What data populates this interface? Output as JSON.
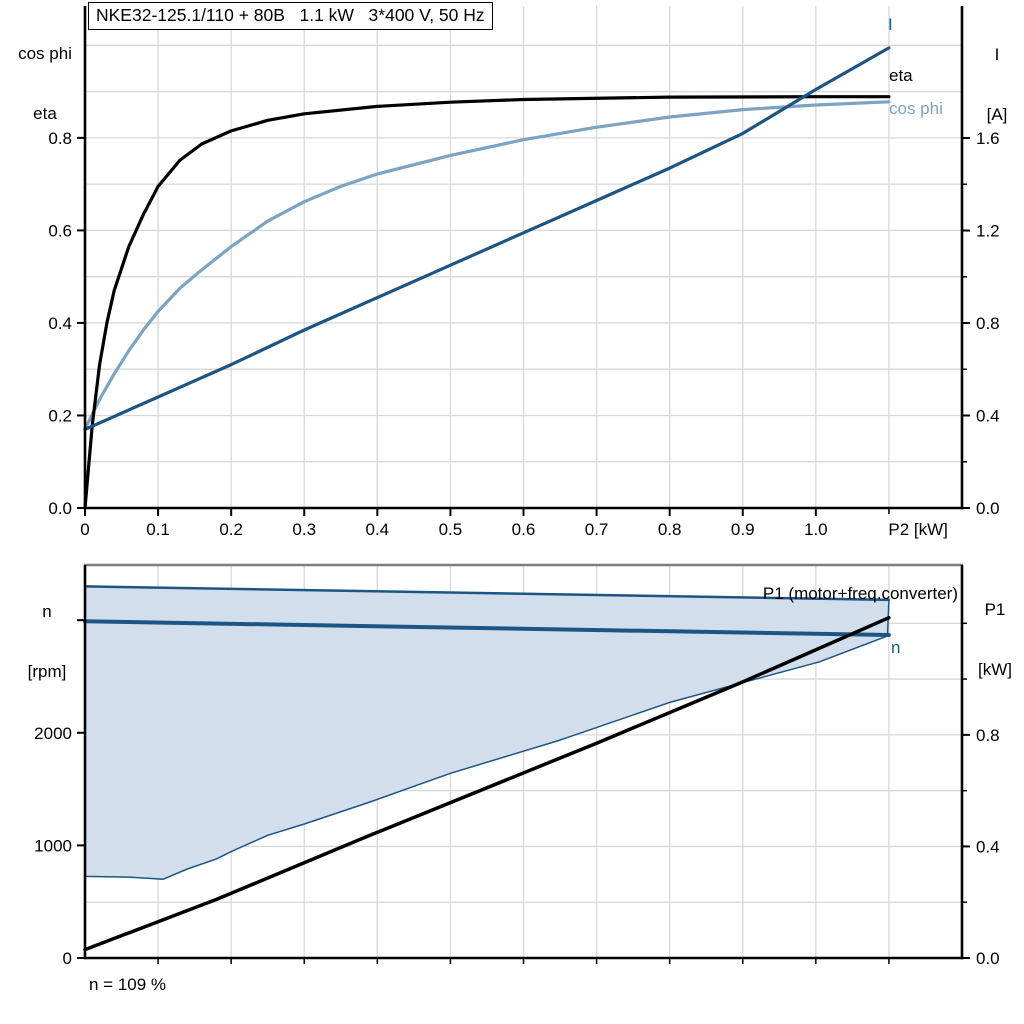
{
  "title": "NKE32-125.1/110 + 80B   1.1 kW   3*400 V, 50 Hz",
  "note": "n = 109 %",
  "colors": {
    "black": "#000000",
    "dark_blue": "#1c5583",
    "light_blue": "#7ba3c4",
    "fill_blue": "#d3deec",
    "grid": "#d8d8d8",
    "frame_gray": "#7f7f7f"
  },
  "axis_titles": {
    "top_left": [
      "cos phi",
      "eta"
    ],
    "top_right": [
      "I",
      "[A]"
    ],
    "bottom_left": [
      "n",
      "[rpm]"
    ],
    "bottom_right": [
      "P1",
      "[kW]"
    ]
  },
  "curve_labels": {
    "i": "I",
    "eta": "eta",
    "cos_phi": "cos phi",
    "p1": "P1 (motor+freq.converter)",
    "n": "n"
  },
  "chart_data": [
    {
      "type": "line",
      "title": "NKE32-125.1/110 + 80B   1.1 kW   3*400 V, 50 Hz",
      "grid": true,
      "x_axis": {
        "title": "P2 [kW]",
        "title_pos": 1.14,
        "range": [
          0,
          1.2
        ],
        "ticks": [
          {
            "v": 0,
            "label": "0"
          },
          {
            "v": 0.1,
            "label": "0.1"
          },
          {
            "v": 0.2,
            "label": "0.2"
          },
          {
            "v": 0.3,
            "label": "0.3"
          },
          {
            "v": 0.4,
            "label": "0.4"
          },
          {
            "v": 0.5,
            "label": "0.5"
          },
          {
            "v": 0.6,
            "label": "0.6"
          },
          {
            "v": 0.7,
            "label": "0.7"
          },
          {
            "v": 0.8,
            "label": "0.8"
          },
          {
            "v": 0.9,
            "label": "0.9"
          },
          {
            "v": 1.0,
            "label": "1.0"
          }
        ],
        "minor": [
          1.1
        ],
        "gridlines": [
          0.1,
          0.2,
          0.3,
          0.4,
          0.5,
          0.6,
          0.7,
          0.8,
          0.9,
          1.0,
          1.1
        ]
      },
      "left_axis": {
        "title": "cos phi / eta",
        "range": [
          0,
          1.085
        ],
        "ticks": [
          {
            "v": 0.0,
            "label": "0.0"
          },
          {
            "v": 0.2,
            "label": "0.2"
          },
          {
            "v": 0.4,
            "label": "0.4"
          },
          {
            "v": 0.6,
            "label": "0.6"
          },
          {
            "v": 0.8,
            "label": "0.8"
          }
        ],
        "minor": [],
        "gridlines": [
          0.1,
          0.2,
          0.3,
          0.4,
          0.5,
          0.6,
          0.7,
          0.8,
          0.9,
          1.0
        ]
      },
      "right_axis": {
        "title": "I [A]",
        "range": [
          0,
          2.171
        ],
        "ticks": [
          {
            "v": 0.0,
            "label": "0.0"
          },
          {
            "v": 0.4,
            "label": "0.4"
          },
          {
            "v": 0.8,
            "label": "0.8"
          },
          {
            "v": 1.2,
            "label": "1.2"
          },
          {
            "v": 1.6,
            "label": "1.6"
          }
        ],
        "minor": [
          0.2,
          0.6,
          1.0,
          1.4
        ],
        "gridlines": []
      },
      "series": [
        {
          "name": "cos phi",
          "axis": "left",
          "color": "light_blue",
          "width": 3.2,
          "draw": true,
          "x": [
            0,
            0.02,
            0.04,
            0.06,
            0.08,
            0.1,
            0.13,
            0.16,
            0.2,
            0.25,
            0.3,
            0.35,
            0.4,
            0.5,
            0.6,
            0.7,
            0.8,
            0.9,
            1.0,
            1.1
          ],
          "y": [
            0.17,
            0.235,
            0.29,
            0.34,
            0.385,
            0.425,
            0.475,
            0.515,
            0.565,
            0.62,
            0.662,
            0.695,
            0.722,
            0.762,
            0.796,
            0.823,
            0.845,
            0.861,
            0.871,
            0.878
          ]
        },
        {
          "name": "eta",
          "axis": "left",
          "color": "black",
          "width": 3.2,
          "draw": true,
          "x": [
            0,
            0.01,
            0.02,
            0.03,
            0.04,
            0.06,
            0.08,
            0.1,
            0.13,
            0.16,
            0.2,
            0.25,
            0.3,
            0.4,
            0.5,
            0.6,
            0.8,
            1.0,
            1.1
          ],
          "y": [
            0,
            0.18,
            0.31,
            0.4,
            0.47,
            0.565,
            0.635,
            0.695,
            0.752,
            0.787,
            0.815,
            0.838,
            0.852,
            0.868,
            0.877,
            0.883,
            0.888,
            0.889,
            0.889
          ]
        },
        {
          "name": "I",
          "axis": "right",
          "color": "dark_blue",
          "width": 3.2,
          "draw": true,
          "x": [
            0,
            0.1,
            0.2,
            0.3,
            0.4,
            0.5,
            0.6,
            0.7,
            0.8,
            0.9,
            1.0,
            1.1
          ],
          "y": [
            0.34,
            0.48,
            0.62,
            0.77,
            0.91,
            1.05,
            1.19,
            1.33,
            1.47,
            1.62,
            1.81,
            1.99
          ]
        }
      ]
    },
    {
      "type": "line+area",
      "title": "",
      "grid": true,
      "note": "n = 109 %",
      "x_axis": {
        "title": "",
        "range": [
          0,
          1.2
        ],
        "ticks": [],
        "minor": [
          0.1,
          0.2,
          0.3,
          0.4,
          0.5,
          0.6,
          0.7,
          0.8,
          0.9,
          1.0,
          1.1
        ],
        "gridlines": [
          0.1,
          0.2,
          0.3,
          0.4,
          0.5,
          0.6,
          0.7,
          0.8,
          0.9,
          1.0,
          1.1
        ]
      },
      "left_axis": {
        "title": "n [rpm]",
        "range": [
          0,
          3490
        ],
        "ticks": [
          {
            "v": 0,
            "label": "0"
          },
          {
            "v": 1000,
            "label": "1000"
          },
          {
            "v": 2000,
            "label": "2000"
          }
        ],
        "minor": [
          3000
        ],
        "gridlines": []
      },
      "right_axis": {
        "title": "P1 [kW]",
        "range": [
          0,
          1.409
        ],
        "ticks": [
          {
            "v": 0.0,
            "label": "0.0"
          },
          {
            "v": 0.4,
            "label": "0.4"
          },
          {
            "v": 0.8,
            "label": "0.8"
          }
        ],
        "minor": [
          0.2,
          0.6,
          1.0,
          1.2
        ],
        "gridlines": [
          0.2,
          0.4,
          0.6,
          0.8,
          1.0,
          1.2
        ]
      },
      "area": {
        "upper": "n max",
        "lower": "n min",
        "color": "fill_blue",
        "edge_color": "dark_blue",
        "edge_width": 1.5
      },
      "series": [
        {
          "name": "n max",
          "axis": "left",
          "color": "dark_blue",
          "width": 2.5,
          "draw": true,
          "x": [
            0,
            1.1
          ],
          "y": [
            3300,
            3180
          ]
        },
        {
          "name": "n min",
          "axis": "left",
          "color": "dark_blue",
          "width": 1.5,
          "draw": false,
          "x": [
            0,
            0.06,
            0.107,
            0.14,
            0.18,
            0.2,
            0.25,
            0.3,
            0.39,
            0.5,
            0.65,
            0.8,
            1.005,
            1.098
          ],
          "y": [
            725,
            718,
            700,
            790,
            880,
            945,
            1090,
            1190,
            1385,
            1640,
            1935,
            2270,
            2630,
            2860
          ]
        },
        {
          "name": "n",
          "axis": "left",
          "color": "dark_blue",
          "width": 4,
          "draw": true,
          "x": [
            0,
            1.1
          ],
          "y": [
            2990,
            2868
          ]
        },
        {
          "name": "P1 (motor+freq.converter)",
          "axis": "right",
          "color": "black",
          "width": 3.5,
          "draw": true,
          "x": [
            0,
            0.18,
            0.39,
            0.7,
            0.9,
            1.1
          ],
          "y": [
            0.03,
            0.21,
            0.44,
            0.77,
            0.99,
            1.22
          ]
        }
      ]
    }
  ]
}
